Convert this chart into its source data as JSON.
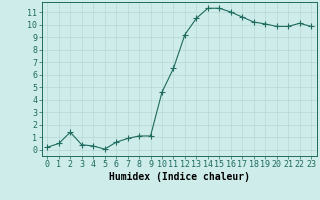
{
  "x": [
    0,
    1,
    2,
    3,
    4,
    5,
    6,
    7,
    8,
    9,
    10,
    11,
    12,
    13,
    14,
    15,
    16,
    17,
    18,
    19,
    20,
    21,
    22,
    23
  ],
  "y": [
    0.2,
    0.5,
    1.4,
    0.4,
    0.3,
    0.05,
    0.6,
    0.9,
    1.1,
    1.1,
    4.6,
    6.5,
    9.2,
    10.5,
    11.3,
    11.3,
    11.0,
    10.6,
    10.2,
    10.05,
    9.85,
    9.85,
    10.1,
    9.85
  ],
  "xlabel": "Humidex (Indice chaleur)",
  "line_color": "#1f6b5e",
  "marker": "+",
  "marker_size": 4.0,
  "bg_color": "#cdecea",
  "grid_color": "#b8d8d5",
  "xlim": [
    -0.5,
    23.5
  ],
  "ylim": [
    -0.5,
    11.8
  ],
  "yticks": [
    0,
    1,
    2,
    3,
    4,
    5,
    6,
    7,
    8,
    9,
    10,
    11
  ],
  "xticks": [
    0,
    1,
    2,
    3,
    4,
    5,
    6,
    7,
    8,
    9,
    10,
    11,
    12,
    13,
    14,
    15,
    16,
    17,
    18,
    19,
    20,
    21,
    22,
    23
  ],
  "tick_font_size": 6,
  "label_font_size": 7
}
